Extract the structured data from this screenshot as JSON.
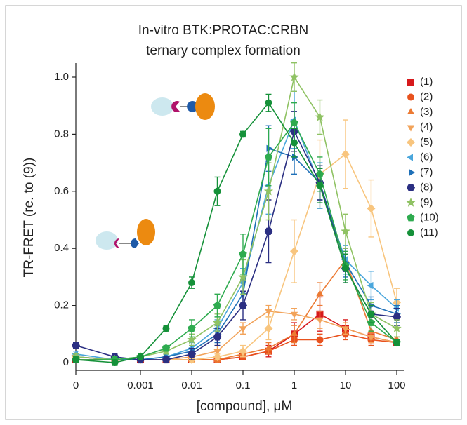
{
  "chart_data": {
    "type": "line",
    "title": [
      "In-vitro BTK:PROTAC:CRBN",
      "ternary complex formation"
    ],
    "x_label": "[compound], μM",
    "y_label": "TR-FRET (re. to (9))",
    "log_x": true,
    "xlim": [
      0,
      100
    ],
    "xticks": [
      0,
      0.001,
      0.01,
      0.1,
      1,
      10,
      100
    ],
    "ylim": [
      0,
      1.0
    ],
    "yticks": [
      0,
      0.2,
      0.4,
      0.6,
      0.8,
      {
        "value": 1.0,
        "label": "1.0"
      }
    ],
    "x": [
      0,
      0.000316,
      0.001,
      0.00316,
      0.01,
      0.0316,
      0.1,
      0.316,
      1,
      3.16,
      10,
      31.6,
      100
    ],
    "series": [
      {
        "name": "(1)",
        "color": "#d7191c",
        "marker": "square",
        "values": [
          0.01,
          0.01,
          0.01,
          0.01,
          0.01,
          0.01,
          0.02,
          0.04,
          0.1,
          0.17,
          0.12,
          0.09,
          0.07
        ],
        "errors": [
          0.01,
          0.01,
          0.01,
          0.01,
          0.01,
          0.01,
          0.01,
          0.02,
          0.04,
          0.06,
          0.03,
          0.02,
          0.01
        ]
      },
      {
        "name": "(2)",
        "color": "#e8521e",
        "marker": "circle",
        "values": [
          0.02,
          0.01,
          0.01,
          0.01,
          0.01,
          0.01,
          0.02,
          0.04,
          0.08,
          0.08,
          0.1,
          0.08,
          0.07
        ],
        "errors": [
          0.01,
          0.01,
          0.01,
          0.01,
          0.01,
          0.01,
          0.01,
          0.01,
          0.02,
          0.02,
          0.02,
          0.02,
          0.01
        ]
      },
      {
        "name": "(3)",
        "color": "#ec7a33",
        "marker": "triangle-up",
        "values": [
          0.02,
          0.01,
          0.01,
          0.01,
          0.01,
          0.01,
          0.03,
          0.05,
          0.1,
          0.24,
          0.36,
          0.11,
          0.08
        ],
        "errors": [
          0.01,
          0.01,
          0.01,
          0.01,
          0.01,
          0.01,
          0.01,
          0.02,
          0.03,
          0.04,
          0.04,
          0.03,
          0.01
        ]
      },
      {
        "name": "(4)",
        "color": "#f2a35a",
        "marker": "triangle-down",
        "values": [
          0.02,
          0.01,
          0.01,
          0.01,
          0.02,
          0.04,
          0.12,
          0.18,
          0.17,
          0.15,
          0.12,
          0.09,
          0.07
        ],
        "errors": [
          0.01,
          0.01,
          0.01,
          0.01,
          0.01,
          0.02,
          0.02,
          0.02,
          0.02,
          0.03,
          0.02,
          0.02,
          0.01
        ]
      },
      {
        "name": "(5)",
        "color": "#f8c57e",
        "marker": "diamond",
        "values": [
          0.02,
          0.01,
          0.01,
          0.01,
          0.01,
          0.02,
          0.04,
          0.12,
          0.39,
          0.66,
          0.73,
          0.54,
          0.21
        ],
        "errors": [
          0.01,
          0.01,
          0.01,
          0.01,
          0.01,
          0.01,
          0.02,
          0.04,
          0.11,
          0.12,
          0.12,
          0.1,
          0.05
        ]
      },
      {
        "name": "(6)",
        "color": "#4aa6dc",
        "marker": "triangle-left",
        "values": [
          0.03,
          0.01,
          0.01,
          0.02,
          0.05,
          0.12,
          0.28,
          0.62,
          0.85,
          0.62,
          0.36,
          0.27,
          0.19
        ],
        "errors": [
          0.01,
          0.01,
          0.01,
          0.01,
          0.02,
          0.03,
          0.05,
          0.1,
          0.1,
          0.08,
          0.05,
          0.05,
          0.03
        ]
      },
      {
        "name": "(7)",
        "color": "#1f70b8",
        "marker": "triangle-right",
        "values": [
          0.02,
          0.01,
          0.01,
          0.02,
          0.04,
          0.1,
          0.24,
          0.75,
          0.72,
          0.63,
          0.35,
          0.2,
          0.17
        ],
        "errors": [
          0.01,
          0.01,
          0.01,
          0.01,
          0.02,
          0.03,
          0.05,
          0.08,
          0.06,
          0.06,
          0.05,
          0.03,
          0.03
        ]
      },
      {
        "name": "(8)",
        "color": "#2b2f82",
        "marker": "hexagon",
        "values": [
          0.06,
          0.02,
          0.01,
          0.01,
          0.03,
          0.09,
          0.2,
          0.46,
          0.81,
          0.63,
          0.33,
          0.17,
          0.16
        ],
        "errors": [
          0.01,
          0.01,
          0.01,
          0.01,
          0.02,
          0.03,
          0.05,
          0.11,
          0.07,
          0.06,
          0.05,
          0.03,
          0.03
        ]
      },
      {
        "name": "(9)",
        "color": "#8fc263",
        "marker": "star",
        "values": [
          0.02,
          0.01,
          0.02,
          0.04,
          0.08,
          0.14,
          0.3,
          0.6,
          1.0,
          0.86,
          0.46,
          0.17,
          0.12
        ],
        "errors": [
          0.01,
          0.01,
          0.01,
          0.01,
          0.02,
          0.03,
          0.06,
          0.1,
          0.05,
          0.06,
          0.06,
          0.04,
          0.03
        ]
      },
      {
        "name": "(10)",
        "color": "#2eab4f",
        "marker": "pentagon",
        "values": [
          0.01,
          0.01,
          0.02,
          0.05,
          0.12,
          0.2,
          0.38,
          0.72,
          0.84,
          0.66,
          0.34,
          0.14,
          0.07
        ],
        "errors": [
          0.01,
          0.01,
          0.01,
          0.01,
          0.03,
          0.04,
          0.07,
          0.1,
          0.07,
          0.06,
          0.05,
          0.03,
          0.01
        ]
      },
      {
        "name": "(11)",
        "color": "#159139",
        "marker": "circle",
        "values": [
          0.01,
          0.0,
          0.02,
          0.12,
          0.28,
          0.6,
          0.8,
          0.91,
          0.77,
          0.62,
          0.33,
          0.17,
          0.07
        ],
        "errors": [
          0.01,
          0.01,
          0.01,
          0.01,
          0.02,
          0.05,
          0.01,
          0.03,
          0.05,
          0.06,
          0.05,
          0.03,
          0.01
        ]
      }
    ]
  }
}
